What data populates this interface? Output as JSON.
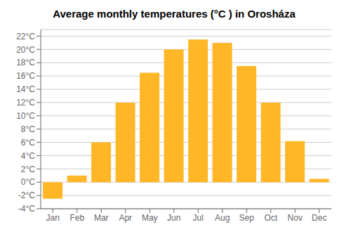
{
  "chart_data": {
    "type": "bar",
    "title": "Average monthly temperatures (°C ) in Orosháza",
    "categories": [
      "Jan",
      "Feb",
      "Mar",
      "Apr",
      "May",
      "Jun",
      "Jul",
      "Aug",
      "Sep",
      "Oct",
      "Nov",
      "Dec"
    ],
    "values": [
      -2.5,
      1.0,
      6.0,
      12.0,
      16.5,
      20.0,
      21.5,
      21.0,
      17.5,
      12.0,
      6.2,
      0.5
    ],
    "color": "#FFB727",
    "ylim": [
      -4,
      23
    ],
    "yticks": [
      {
        "value": -4,
        "label": "-4°C"
      },
      {
        "value": -2,
        "label": "-2°C"
      },
      {
        "value": 0,
        "label": "0°C"
      },
      {
        "value": 2,
        "label": "2°C"
      },
      {
        "value": 4,
        "label": "4°C"
      },
      {
        "value": 6,
        "label": "6°C"
      },
      {
        "value": 8,
        "label": "8°C"
      },
      {
        "value": 10,
        "label": "10°C"
      },
      {
        "value": 12,
        "label": "12°C"
      },
      {
        "value": 14,
        "label": "14°C"
      },
      {
        "value": 16,
        "label": "16°C"
      },
      {
        "value": 18,
        "label": "18°C"
      },
      {
        "value": 20,
        "label": "20°C"
      },
      {
        "value": 22,
        "label": "22°C"
      }
    ],
    "grid": true
  }
}
